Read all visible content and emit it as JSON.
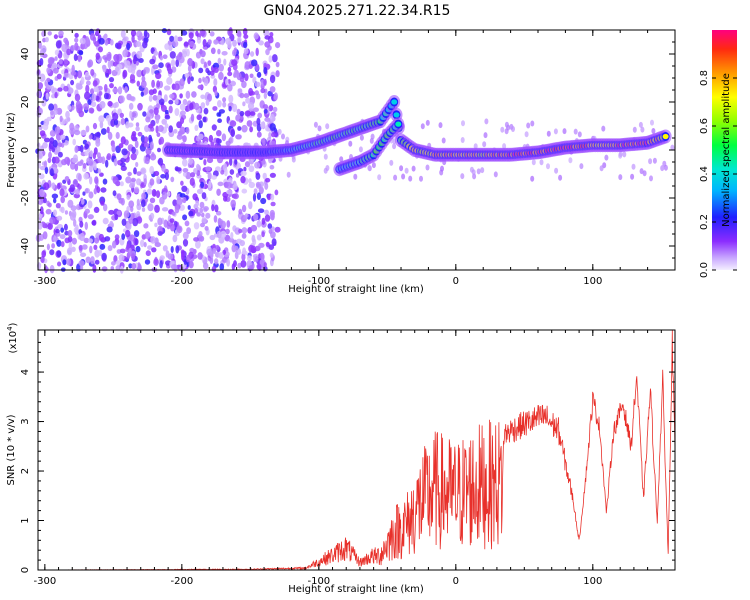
{
  "title": "GN04.2025.271.22.34.R15",
  "chart_data": [
    {
      "type": "heatmap",
      "title": "GN04.2025.271.22.34.R15",
      "xlabel": "Height of straight line (km)",
      "ylabel": "Frequency (Hz)",
      "xlim": [
        -305,
        160
      ],
      "ylim": [
        -50,
        50
      ],
      "xticks": [
        -300,
        -200,
        -100,
        0,
        100
      ],
      "yticks": [
        -40,
        -20,
        0,
        20,
        40
      ],
      "colorbar": {
        "label": "Normalized spectral amplitude",
        "range": [
          0,
          1
        ],
        "ticks": [
          0.0,
          0.2,
          0.4,
          0.6,
          0.8
        ],
        "colormap": "rainbow"
      },
      "noise_region_x": [
        -305,
        -130
      ],
      "ridge": [
        {
          "x": -210,
          "y": 0,
          "amp": 0.12
        },
        {
          "x": -170,
          "y": -1,
          "amp": 0.15
        },
        {
          "x": -140,
          "y": -1,
          "amp": 0.2
        },
        {
          "x": -120,
          "y": 0,
          "amp": 0.35
        },
        {
          "x": -100,
          "y": 3,
          "amp": 0.45
        },
        {
          "x": -80,
          "y": 7,
          "amp": 0.5
        },
        {
          "x": -65,
          "y": 10,
          "amp": 0.45
        },
        {
          "x": -55,
          "y": 12,
          "amp": 0.45
        },
        {
          "x": -45,
          "y": 20,
          "amp": 0.35
        },
        {
          "x": -40,
          "y": 4,
          "amp": 0.55
        },
        {
          "x": -30,
          "y": 0,
          "amp": 0.65
        },
        {
          "x": -15,
          "y": -2,
          "amp": 0.75
        },
        {
          "x": 0,
          "y": -2,
          "amp": 0.8
        },
        {
          "x": 20,
          "y": -2,
          "amp": 0.7
        },
        {
          "x": 40,
          "y": -2,
          "amp": 0.85
        },
        {
          "x": 60,
          "y": -1,
          "amp": 0.9
        },
        {
          "x": 80,
          "y": 1,
          "amp": 0.9
        },
        {
          "x": 100,
          "y": 2,
          "amp": 0.75
        },
        {
          "x": 120,
          "y": 2,
          "amp": 0.85
        },
        {
          "x": 140,
          "y": 3,
          "amp": 0.9
        },
        {
          "x": 155,
          "y": 6,
          "amp": 0.6
        }
      ],
      "branch": [
        {
          "x": -85,
          "y": -8,
          "amp": 0.35
        },
        {
          "x": -70,
          "y": -5,
          "amp": 0.4
        },
        {
          "x": -60,
          "y": -2,
          "amp": 0.5
        },
        {
          "x": -50,
          "y": 6,
          "amp": 0.5
        },
        {
          "x": -40,
          "y": 12,
          "amp": 0.4
        }
      ]
    },
    {
      "type": "line",
      "xlabel": "Height of straight line (km)",
      "ylabel": "SNR (10 * v/v)",
      "y_multiplier": "(x10",
      "y_multiplier_exp": "4",
      "y_multiplier_close": ")",
      "xlim": [
        -305,
        160
      ],
      "ylim": [
        0,
        4.85
      ],
      "xticks": [
        -300,
        -200,
        -100,
        0,
        100
      ],
      "yticks": [
        0,
        1,
        2,
        3,
        4
      ],
      "color": "#e8302a",
      "envelope": [
        {
          "x": -305,
          "y": 0.0
        },
        {
          "x": -150,
          "y": 0.02
        },
        {
          "x": -110,
          "y": 0.05
        },
        {
          "x": -90,
          "y": 0.4
        },
        {
          "x": -80,
          "y": 0.6
        },
        {
          "x": -70,
          "y": 0.2
        },
        {
          "x": -55,
          "y": 0.5
        },
        {
          "x": -45,
          "y": 1.2
        },
        {
          "x": -35,
          "y": 1.5
        },
        {
          "x": -25,
          "y": 2.2
        },
        {
          "x": -15,
          "y": 2.6
        },
        {
          "x": 0,
          "y": 2.4
        },
        {
          "x": 15,
          "y": 2.7
        },
        {
          "x": 30,
          "y": 2.8
        },
        {
          "x": 40,
          "y": 3.0
        },
        {
          "x": 55,
          "y": 3.2
        },
        {
          "x": 65,
          "y": 3.3
        },
        {
          "x": 75,
          "y": 3.0
        },
        {
          "x": 85,
          "y": 1.6
        },
        {
          "x": 90,
          "y": 0.6
        },
        {
          "x": 95,
          "y": 2.0
        },
        {
          "x": 100,
          "y": 3.6
        },
        {
          "x": 105,
          "y": 3.0
        },
        {
          "x": 110,
          "y": 1.2
        },
        {
          "x": 115,
          "y": 2.9
        },
        {
          "x": 122,
          "y": 3.5
        },
        {
          "x": 128,
          "y": 2.6
        },
        {
          "x": 132,
          "y": 4.1
        },
        {
          "x": 137,
          "y": 1.5
        },
        {
          "x": 142,
          "y": 3.8
        },
        {
          "x": 147,
          "y": 1.0
        },
        {
          "x": 151,
          "y": 4.0
        },
        {
          "x": 155,
          "y": 0.3
        },
        {
          "x": 158,
          "y": 4.85
        },
        {
          "x": 160,
          "y": 2.5
        }
      ]
    }
  ]
}
